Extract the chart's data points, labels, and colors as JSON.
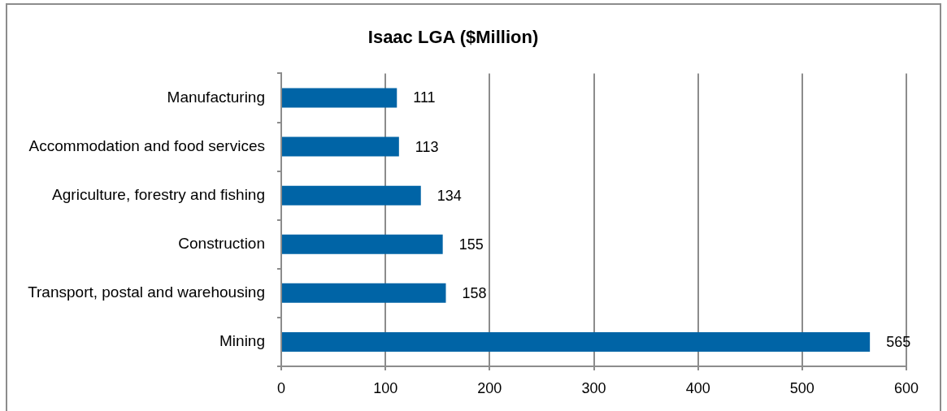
{
  "chart_data": {
    "type": "bar",
    "orientation": "horizontal",
    "title": "Isaac LGA ($Million)",
    "categories": [
      "Manufacturing",
      "Accommodation and food services",
      "Agriculture, forestry and fishing",
      "Construction",
      "Transport, postal and warehousing",
      "Mining"
    ],
    "values": [
      111,
      113,
      134,
      155,
      158,
      565
    ],
    "color": "#0064a6",
    "xlim": [
      0,
      600
    ],
    "xticks": [
      0,
      100,
      200,
      300,
      400,
      500,
      600
    ],
    "grid": "x",
    "data_labels": true
  }
}
